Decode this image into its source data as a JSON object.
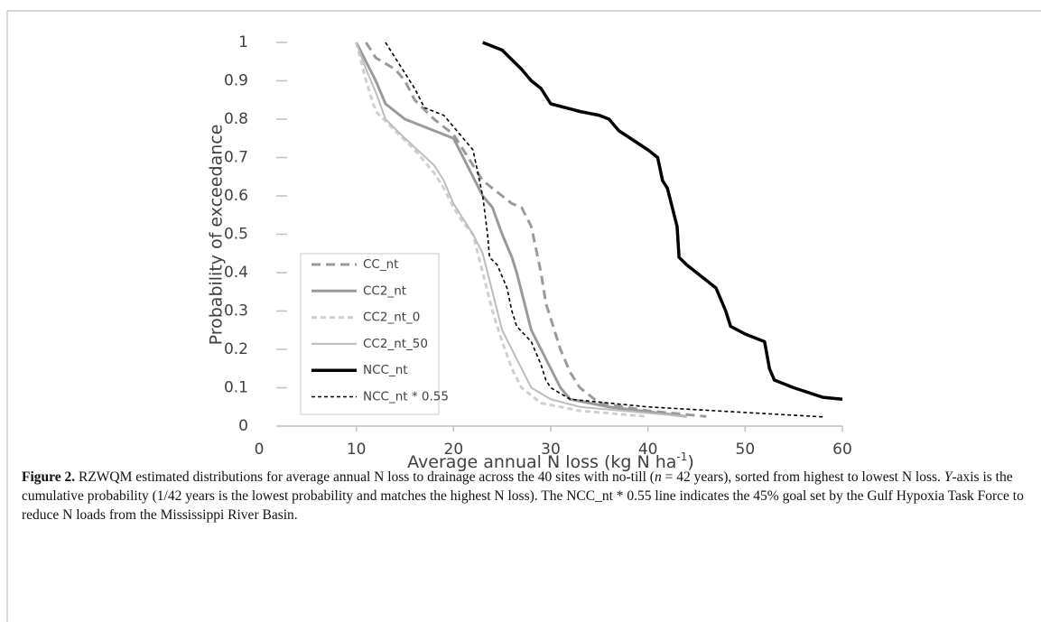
{
  "chart_data": {
    "type": "line",
    "xlabel": "Average annual N loss (kg N ha",
    "xlabel_sup": "-1",
    "xlabel_end": ")",
    "ylabel": "Probability of exceedance",
    "xlim": [
      0,
      60
    ],
    "xticks": [
      0,
      10,
      20,
      30,
      40,
      50,
      60
    ],
    "ylim": [
      0,
      1
    ],
    "yticks": [
      0,
      0.1,
      0.2,
      0.3,
      0.4,
      0.5,
      0.6,
      0.7,
      0.8,
      0.9,
      1
    ],
    "legend": "left",
    "series": [
      {
        "name": "CC_nt",
        "color": "#9a9a9a",
        "width": 3,
        "dash": "10 6",
        "x": [
          11,
          12,
          14,
          15,
          16,
          18,
          20,
          21,
          22,
          23,
          24,
          25,
          26,
          27,
          28,
          28.5,
          29,
          29.5,
          30,
          31,
          32,
          33,
          35,
          40,
          46
        ],
        "values": [
          1,
          0.96,
          0.93,
          0.9,
          0.85,
          0.8,
          0.76,
          0.72,
          0.68,
          0.64,
          0.62,
          0.6,
          0.58,
          0.57,
          0.52,
          0.46,
          0.4,
          0.32,
          0.28,
          0.2,
          0.14,
          0.1,
          0.06,
          0.04,
          0.025
        ]
      },
      {
        "name": "CC2_nt",
        "color": "#9a9a9a",
        "width": 3,
        "dash": "none",
        "x": [
          10,
          11,
          12,
          13,
          15,
          17,
          20,
          21,
          22,
          23,
          24,
          25,
          26,
          26.5,
          27,
          27.5,
          28,
          29,
          30,
          31,
          32,
          36,
          44
        ],
        "values": [
          1,
          0.95,
          0.9,
          0.84,
          0.8,
          0.78,
          0.75,
          0.7,
          0.65,
          0.6,
          0.57,
          0.5,
          0.44,
          0.4,
          0.35,
          0.3,
          0.25,
          0.2,
          0.15,
          0.1,
          0.07,
          0.05,
          0.025
        ]
      },
      {
        "name": "CC2_nt_0",
        "color": "#d0d0d0",
        "width": 3,
        "dash": "6 4",
        "x": [
          10,
          10.5,
          11,
          12,
          14,
          16,
          18,
          19,
          20,
          21,
          22,
          22.5,
          23,
          23.5,
          24,
          25,
          26,
          27,
          29,
          33,
          40
        ],
        "values": [
          1,
          0.95,
          0.9,
          0.82,
          0.77,
          0.72,
          0.66,
          0.62,
          0.57,
          0.53,
          0.5,
          0.45,
          0.4,
          0.35,
          0.3,
          0.22,
          0.15,
          0.1,
          0.06,
          0.04,
          0.025
        ]
      },
      {
        "name": "CC2_nt_50",
        "color": "#bdbdbd",
        "width": 2,
        "dash": "none",
        "x": [
          10,
          11,
          12,
          13,
          15,
          18,
          19,
          20,
          21,
          22,
          23,
          23.5,
          24,
          24.5,
          25,
          26,
          27,
          28,
          30,
          33,
          44
        ],
        "values": [
          1,
          0.93,
          0.87,
          0.8,
          0.75,
          0.68,
          0.64,
          0.58,
          0.54,
          0.5,
          0.45,
          0.4,
          0.35,
          0.3,
          0.25,
          0.2,
          0.15,
          0.1,
          0.07,
          0.05,
          0.025
        ]
      },
      {
        "name": "NCC_nt",
        "color": "#000000",
        "width": 3.5,
        "dash": "none",
        "x": [
          23,
          25,
          27,
          28,
          29,
          30,
          33,
          35,
          36,
          37,
          40,
          41,
          41.5,
          42,
          43,
          43.2,
          44,
          45,
          46,
          47,
          48,
          48.5,
          50,
          52,
          52.5,
          53,
          55,
          58,
          60
        ],
        "values": [
          1,
          0.98,
          0.93,
          0.9,
          0.88,
          0.84,
          0.82,
          0.81,
          0.8,
          0.77,
          0.72,
          0.7,
          0.64,
          0.62,
          0.52,
          0.44,
          0.42,
          0.4,
          0.38,
          0.36,
          0.3,
          0.26,
          0.24,
          0.22,
          0.15,
          0.12,
          0.1,
          0.075,
          0.07
        ]
      },
      {
        "name": "NCC_nt * 0.55",
        "color": "#000000",
        "width": 1.6,
        "dash": "4 3",
        "x": [
          13,
          15,
          16,
          17,
          19,
          21,
          22,
          22.5,
          23,
          23.5,
          23.7,
          24.5,
          25.5,
          26,
          26.5,
          28,
          29,
          29.5,
          30,
          32,
          40,
          58
        ],
        "values": [
          1,
          0.92,
          0.88,
          0.83,
          0.81,
          0.75,
          0.72,
          0.66,
          0.6,
          0.5,
          0.44,
          0.42,
          0.36,
          0.3,
          0.26,
          0.22,
          0.16,
          0.12,
          0.1,
          0.07,
          0.05,
          0.024
        ]
      }
    ]
  },
  "caption": {
    "label": "Figure 2.",
    "parts": [
      {
        "text": " RZWQM estimated distributions for average annual N loss to drainage across the 40 sites with no-till (",
        "italic": false
      },
      {
        "text": "n",
        "italic": true
      },
      {
        "text": " = 42 years), sorted from highest to lowest N loss. ",
        "italic": false
      },
      {
        "text": "Y",
        "italic": true
      },
      {
        "text": "-axis is the cumulative probability (1/42 years is the lowest probability and matches the highest N loss). The NCC_nt * 0.55 line indicates the 45% goal set by the Gulf Hypoxia Task Force to reduce N loads from the Mississippi River Basin.",
        "italic": false
      }
    ]
  }
}
